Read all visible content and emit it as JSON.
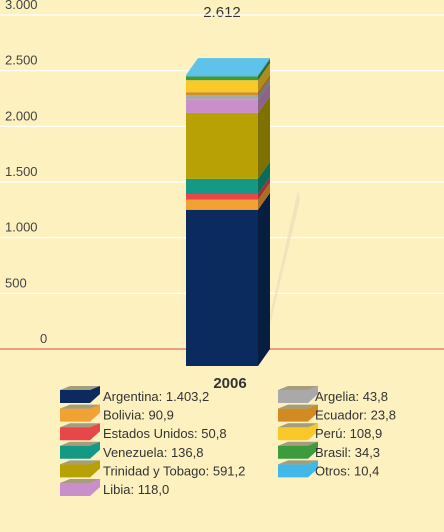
{
  "chart_data": {
    "type": "bar",
    "stacked": true,
    "categories": [
      "2006"
    ],
    "total_label": "2.612",
    "ylim": [
      0,
      3000
    ],
    "yticks": [
      {
        "value": 0,
        "label": "0"
      },
      {
        "value": 500,
        "label": "500"
      },
      {
        "value": 1000,
        "label": "1.000"
      },
      {
        "value": 1500,
        "label": "1.500"
      },
      {
        "value": 2000,
        "label": "2.000"
      },
      {
        "value": 2500,
        "label": "2.500"
      },
      {
        "value": 3000,
        "label": "3.000"
      }
    ],
    "grid": true,
    "series": [
      {
        "name": "Argentina: 1.403,2",
        "color": "#0b2b5e",
        "values": [
          1403.2
        ]
      },
      {
        "name": "Bolivia: 90,9",
        "color": "#f2a134",
        "values": [
          90.9
        ]
      },
      {
        "name": "Estados Unidos: 50,8",
        "color": "#e8474a",
        "values": [
          50.8
        ]
      },
      {
        "name": "Venezuela: 136,8",
        "color": "#149a84",
        "values": [
          136.8
        ]
      },
      {
        "name": "Trinidad y Tobago: 591,2",
        "color": "#b7a104",
        "values": [
          591.2
        ]
      },
      {
        "name": "Libia: 118,0",
        "color": "#c98fca",
        "values": [
          118.0
        ]
      },
      {
        "name": "Argelia: 43,8",
        "color": "#a9a9a9",
        "values": [
          43.8
        ]
      },
      {
        "name": "Ecuador: 23,8",
        "color": "#d48a22",
        "values": [
          23.8
        ]
      },
      {
        "name": "Perú: 108,9",
        "color": "#f9c92a",
        "values": [
          108.9
        ]
      },
      {
        "name": "Brasil: 34,3",
        "color": "#3c9b3c",
        "values": [
          34.3
        ]
      },
      {
        "name": "Otros: 10,4",
        "color": "#42b8e8",
        "values": [
          10.4
        ]
      }
    ]
  }
}
